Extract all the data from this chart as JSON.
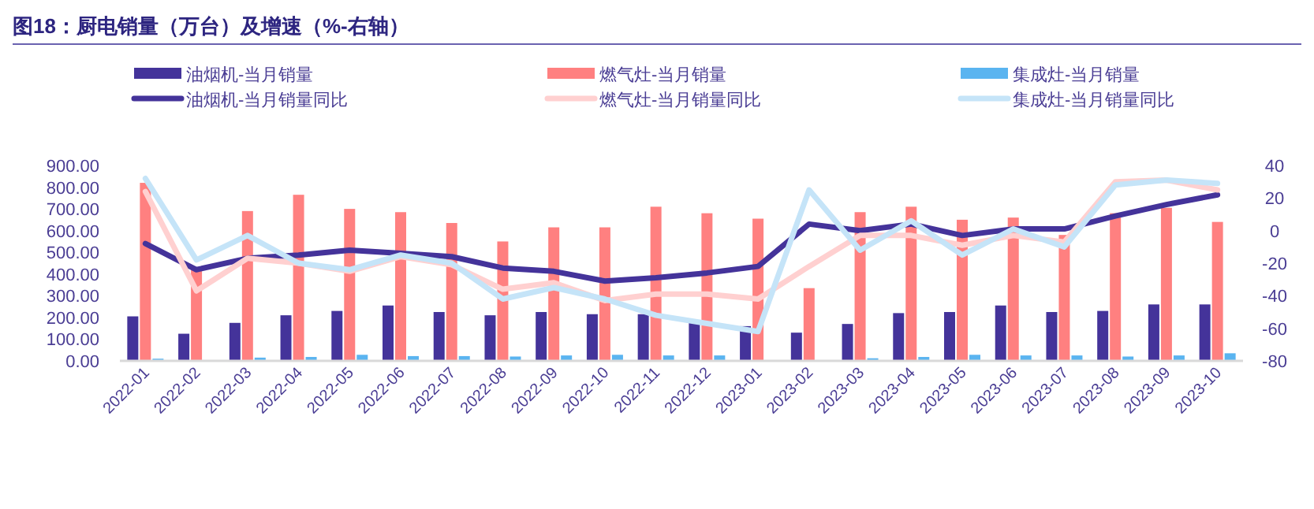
{
  "chart_data": {
    "type": "bar",
    "title": "图18：厨电销量（万台）及增速（%-右轴）",
    "categories": [
      "2022-01",
      "2022-02",
      "2022-03",
      "2022-04",
      "2022-05",
      "2022-06",
      "2022-07",
      "2022-08",
      "2022-09",
      "2022-10",
      "2022-11",
      "2022-12",
      "2023-01",
      "2023-02",
      "2023-03",
      "2023-04",
      "2023-05",
      "2023-06",
      "2023-07",
      "2023-08",
      "2023-09",
      "2023-10"
    ],
    "series": [
      {
        "name": "油烟机-当月销量",
        "color": "#44339a",
        "values": [
          205,
          125,
          175,
          210,
          230,
          255,
          225,
          210,
          225,
          215,
          215,
          175,
          160,
          130,
          170,
          220,
          225,
          255,
          225,
          230,
          260,
          260
        ]
      },
      {
        "name": "燃气灶-当月销量",
        "color": "#ff8080",
        "values": [
          820,
          430,
          690,
          765,
          700,
          685,
          635,
          550,
          615,
          615,
          710,
          680,
          655,
          335,
          685,
          710,
          650,
          660,
          580,
          680,
          705,
          640
        ]
      },
      {
        "name": "集成灶-当月销量",
        "color": "#5ab4f0",
        "values": [
          10,
          3,
          15,
          18,
          28,
          22,
          22,
          20,
          25,
          28,
          25,
          25,
          3,
          2,
          12,
          18,
          28,
          25,
          25,
          20,
          25,
          35
        ]
      },
      {
        "name": "油烟机-当月销量同比",
        "type": "line",
        "axis": "y2",
        "color": "#44339a",
        "values": [
          -8,
          -24,
          -17,
          -15,
          -12,
          -14,
          -16,
          -23,
          -25,
          -31,
          -29,
          -26,
          -22,
          4,
          0,
          4,
          -3,
          1,
          1,
          9,
          16,
          22
        ]
      },
      {
        "name": "燃气灶-当月销量同比",
        "type": "line",
        "axis": "y2",
        "color": "#ffd0d0",
        "values": [
          24,
          -37,
          -17,
          -20,
          -25,
          -16,
          -21,
          -36,
          -32,
          -43,
          -39,
          -39,
          -42,
          -22,
          -3,
          -3,
          -9,
          -3,
          -7,
          30,
          31,
          25
        ]
      },
      {
        "name": "集成灶-当月销量同比",
        "type": "line",
        "axis": "y2",
        "color": "#c5e4f8",
        "values": [
          32,
          -18,
          -3,
          -20,
          -24,
          -15,
          -20,
          -42,
          -35,
          -42,
          -52,
          -57,
          -62,
          25,
          -12,
          6,
          -15,
          1,
          -10,
          28,
          31,
          29
        ]
      }
    ],
    "ylim": [
      0,
      900
    ],
    "yticks": [
      {
        "value": 0,
        "label": "0.00"
      },
      {
        "value": 100,
        "label": "100.00"
      },
      {
        "value": 200,
        "label": "200.00"
      },
      {
        "value": 300,
        "label": "300.00"
      },
      {
        "value": 400,
        "label": "400.00"
      },
      {
        "value": 500,
        "label": "500.00"
      },
      {
        "value": 600,
        "label": "600.00"
      },
      {
        "value": 700,
        "label": "700.00"
      },
      {
        "value": 800,
        "label": "800.00"
      },
      {
        "value": 900,
        "label": "900.00"
      }
    ],
    "y2lim": [
      -80,
      40
    ],
    "y2ticks": [
      -80,
      -60,
      -40,
      -20,
      0,
      20,
      40
    ],
    "grid": false,
    "legend": "top"
  }
}
